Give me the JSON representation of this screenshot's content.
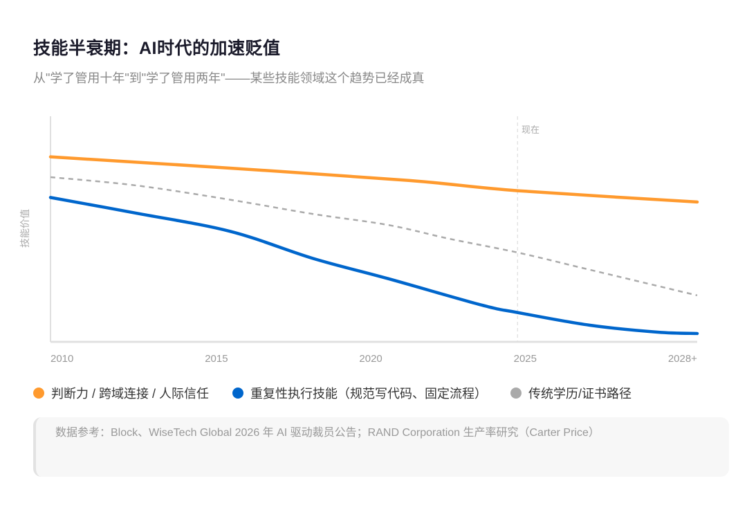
{
  "title": "技能半衰期：AI时代的加速贬值",
  "subtitle": "从\"学了管用十年\"到\"学了管用两年\"——某些技能领域这个趋势已经成真",
  "source": "数据参考：Block、WiseTech Global 2026 年 AI 驱动裁员公告；RAND Corporation 生产率研究（Carter Price）",
  "chart_data": {
    "type": "line",
    "ylabel": "技能价值",
    "xlabel": "",
    "x_tick_labels": [
      "2010",
      "2015",
      "2020",
      "2025",
      "2028+"
    ],
    "xlim": [
      2010,
      2028
    ],
    "ylim": [
      0,
      100
    ],
    "y_ticks_shown": false,
    "grid": false,
    "legend_position": "bottom",
    "annotation": {
      "label": "现在",
      "x": 2023,
      "style": "dashed vertical line"
    },
    "series": [
      {
        "name": "判断力 / 跨域连接 / 人际信任",
        "color": "#FF9A2E",
        "dashed": false,
        "x": [
          2010,
          2015,
          2020,
          2023,
          2028
        ],
        "values": [
          82,
          77,
          71.5,
          67,
          62
        ]
      },
      {
        "name": "重复性执行技能（规范写代码、固定流程）",
        "color": "#0066CC",
        "dashed": false,
        "x": [
          2010,
          2012.4,
          2015,
          2017.3,
          2019.4,
          2022,
          2023,
          2025,
          2026.9,
          2028
        ],
        "values": [
          64,
          57,
          49,
          37,
          28,
          16.3,
          13,
          7.4,
          4.3,
          3.7
        ]
      },
      {
        "name": "传统学历/证书路径",
        "color": "#AAAAAA",
        "dashed": true,
        "x": [
          2010,
          2012.4,
          2015,
          2017.3,
          2019.4,
          2021.1,
          2023,
          2025,
          2028
        ],
        "values": [
          73,
          69.3,
          63,
          56.7,
          51.8,
          45.7,
          39.6,
          32,
          20.6
        ]
      }
    ]
  }
}
